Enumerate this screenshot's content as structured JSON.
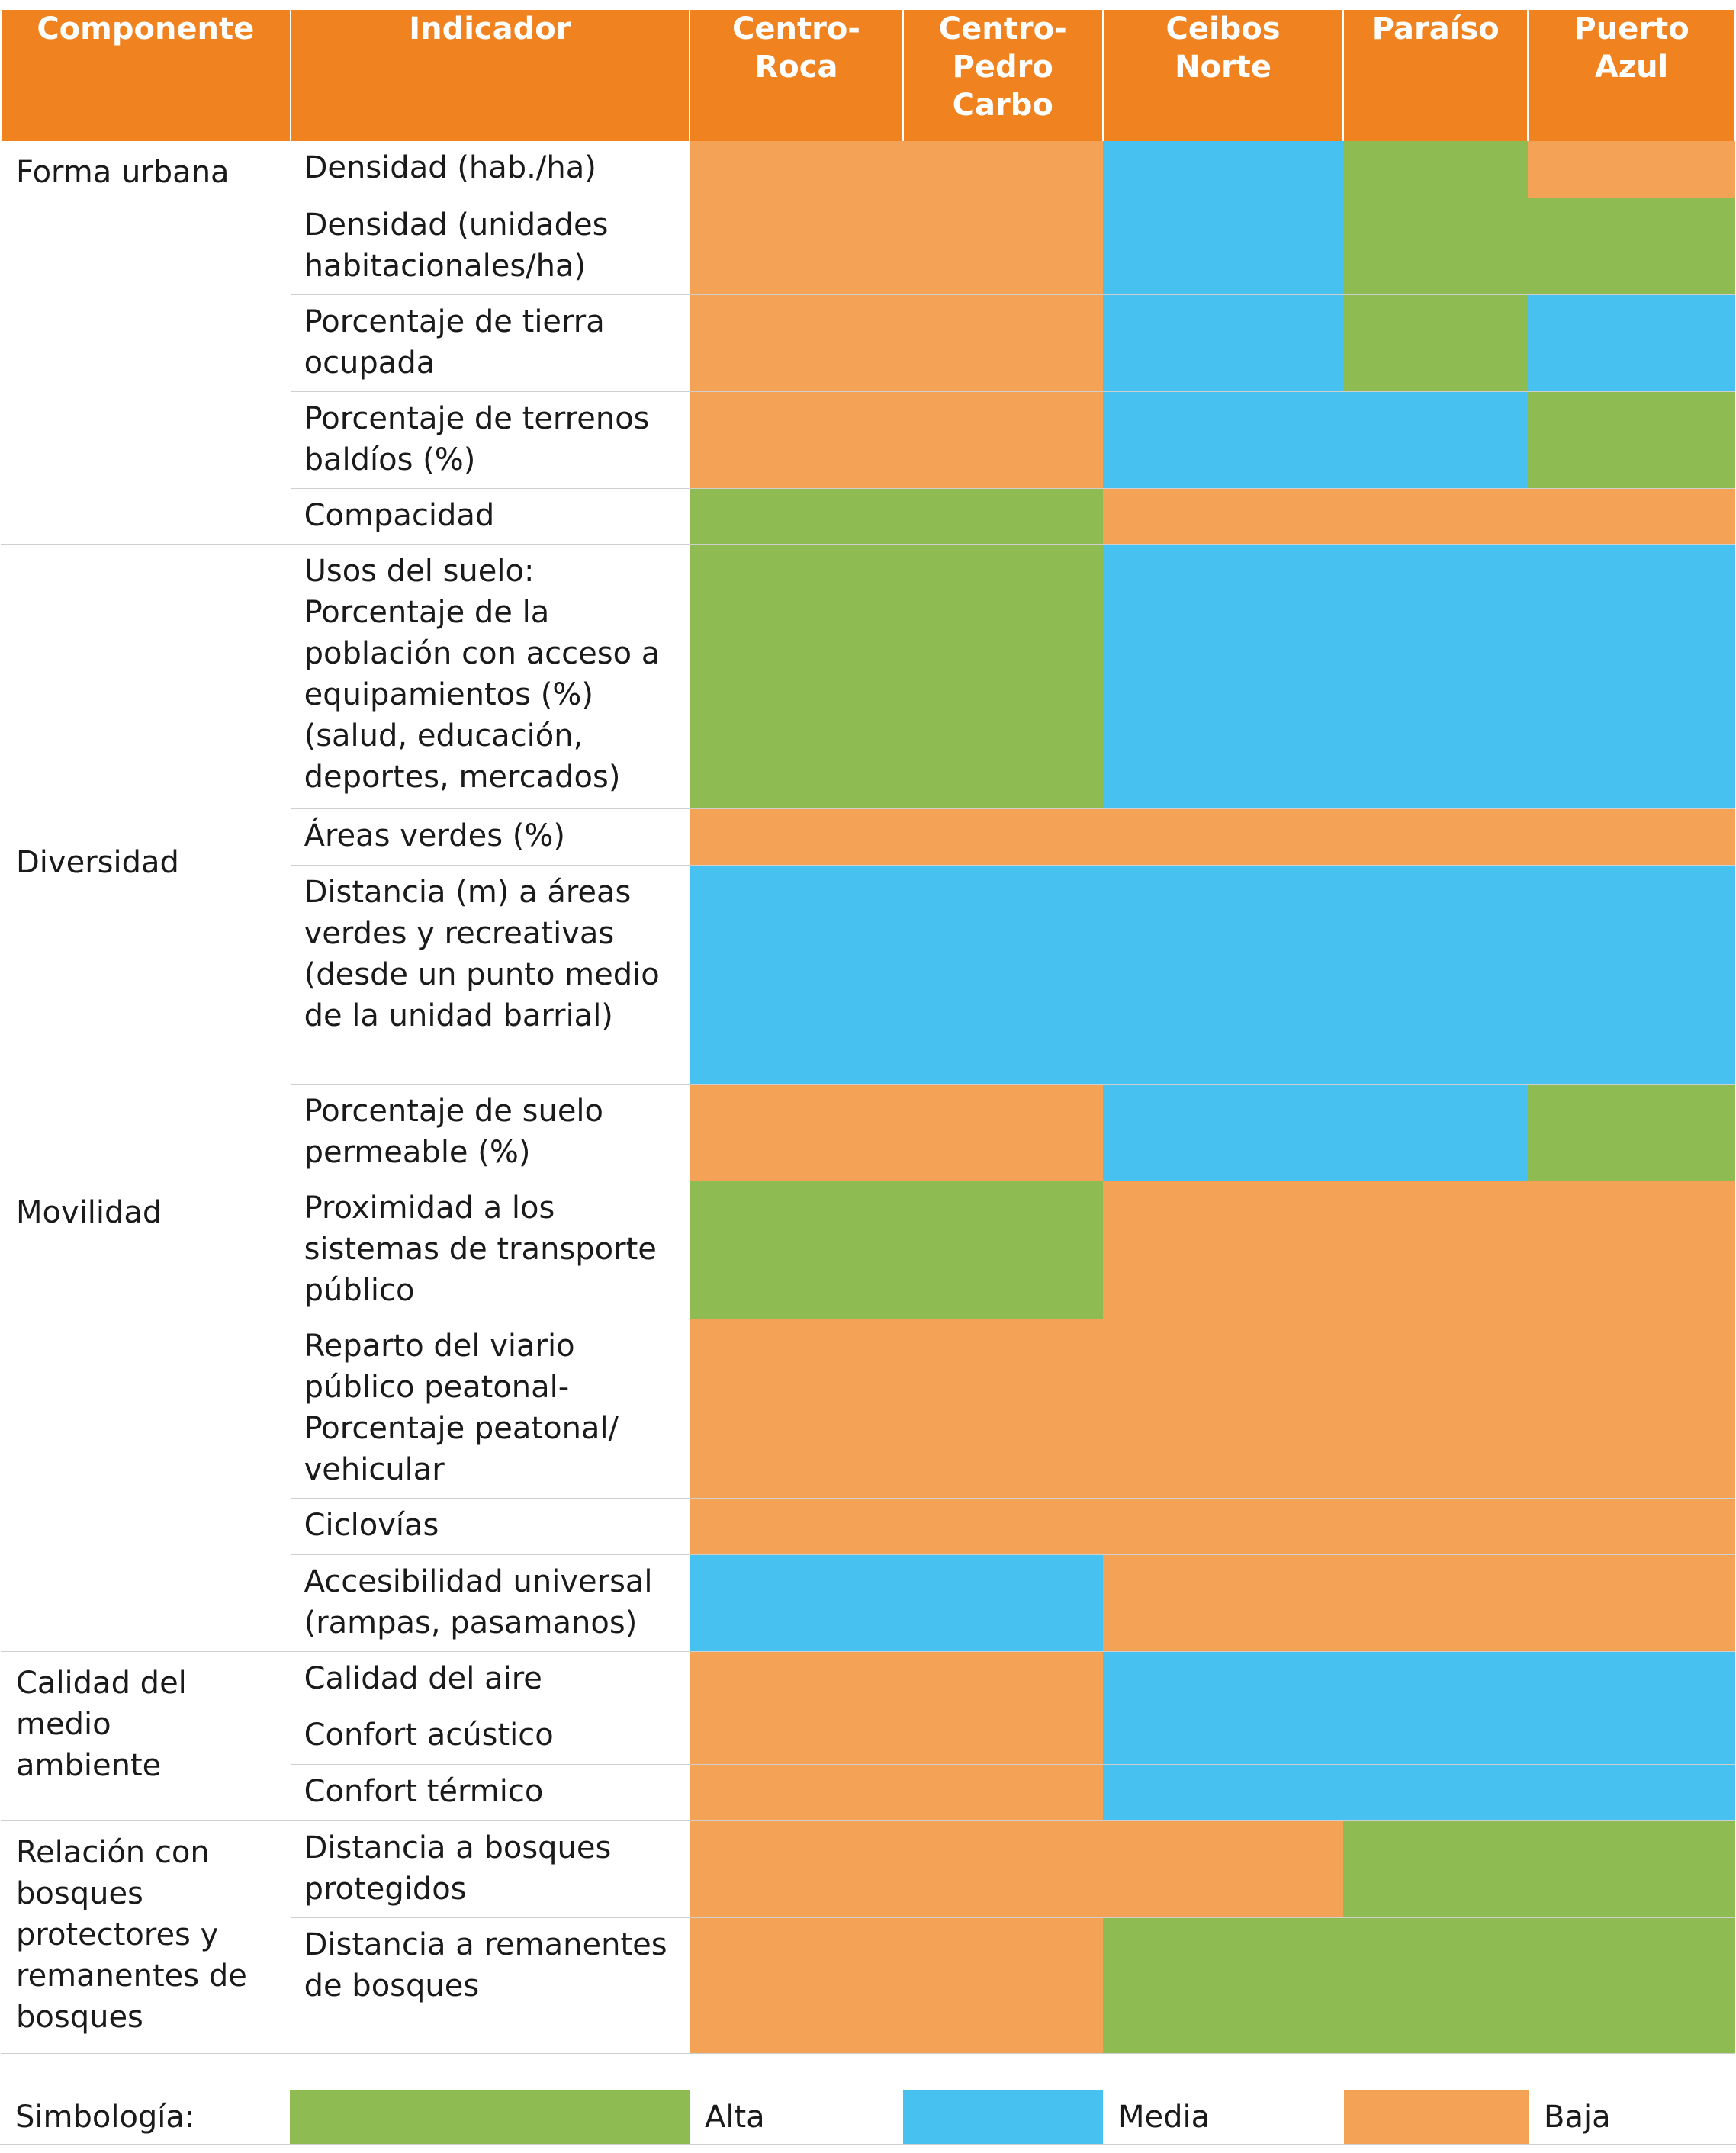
{
  "colors": {
    "alta": "#8fbc52",
    "media": "#47c1f0",
    "baja": "#f4a356",
    "header": "#f08220"
  },
  "headers": {
    "componente": "Componente",
    "indicador": "Indicador",
    "centro_roca": "Centro-Roca",
    "centro_pedro_carbo": "Centro-Pedro Carbo",
    "ceibos_norte": "Ceibos Norte",
    "paraiso": "Paraíso",
    "puerto_azul": "Puerto Azul"
  },
  "components": {
    "forma_urbana": "Forma urbana",
    "diversidad": "Diversidad",
    "movilidad": "Movilidad",
    "calidad": "Calidad del medio ambiente",
    "relacion": "Relación con bosques protectores y remanentes de bosques"
  },
  "rows": [
    {
      "indicador": "Densidad (hab./ha)",
      "values": [
        "Baja",
        "Baja",
        "Media",
        "Alta",
        "Baja"
      ]
    },
    {
      "indicador": "Densidad (unidades habitacionales/ha)",
      "values": [
        "Baja",
        "Baja",
        "Media",
        "Alta",
        "Alta"
      ]
    },
    {
      "indicador": "Porcentaje de tierra ocupada",
      "values": [
        "Baja",
        "Baja",
        "Media",
        "Alta",
        "Media"
      ]
    },
    {
      "indicador": "Porcentaje de terrenos baldíos (%)",
      "values": [
        "Baja",
        "Baja",
        "Media",
        "Media",
        "Alta"
      ]
    },
    {
      "indicador": "Compacidad",
      "values": [
        "Alta",
        "Alta",
        "Baja",
        "Baja",
        "Baja"
      ]
    },
    {
      "indicador": "Usos del suelo: Porcentaje de la población con acceso a equipamientos (%) (salud, educación, deportes, mercados)",
      "values": [
        "Alta",
        "Alta",
        "Media",
        "Media",
        "Media"
      ]
    },
    {
      "indicador": "Áreas verdes (%)",
      "values": [
        "Baja",
        "Baja",
        "Baja",
        "Baja",
        "Baja"
      ]
    },
    {
      "indicador": "Distancia (m) a áreas verdes y recreativas (desde un punto medio de la unidad barrial)",
      "values": [
        "Media",
        "Media",
        "Media",
        "Media",
        "Media"
      ]
    },
    {
      "indicador": "Porcentaje de suelo permeable (%)",
      "values": [
        "Baja",
        "Baja",
        "Media",
        "Media",
        "Alta"
      ]
    },
    {
      "indicador": "Proximidad a los sistemas de transporte público",
      "values": [
        "Alta",
        "Alta",
        "Baja",
        "Baja",
        "Baja"
      ]
    },
    {
      "indicador": "Reparto del viario público peatonal- Porcentaje peatonal/ vehicular",
      "values": [
        "Baja",
        "Baja",
        "Baja",
        "Baja",
        "Baja"
      ]
    },
    {
      "indicador": "Ciclovías",
      "values": [
        "Baja",
        "Baja",
        "Baja",
        "Baja",
        "Baja"
      ]
    },
    {
      "indicador": "Accesibilidad universal (rampas, pasamanos)",
      "values": [
        "Media",
        "Media",
        "Baja",
        "Baja",
        "Baja"
      ]
    },
    {
      "indicador": "Calidad del aire",
      "values": [
        "Baja",
        "Baja",
        "Media",
        "Media",
        "Media"
      ]
    },
    {
      "indicador": "Confort acústico",
      "values": [
        "Baja",
        "Baja",
        "Media",
        "Media",
        "Media"
      ]
    },
    {
      "indicador": "Confort térmico",
      "values": [
        "Baja",
        "Baja",
        "Media",
        "Media",
        "Media"
      ]
    },
    {
      "indicador": "Distancia a bosques protegidos",
      "values": [
        "Baja",
        "Baja",
        "Baja",
        "Alta",
        "Alta"
      ]
    },
    {
      "indicador": "Distancia a remanentes de bosques",
      "values": [
        "Baja",
        "Baja",
        "Alta",
        "Alta",
        "Alta"
      ]
    }
  ],
  "legend": {
    "title": "Simbología:",
    "alta": "Alta",
    "media": "Media",
    "baja": "Baja"
  }
}
